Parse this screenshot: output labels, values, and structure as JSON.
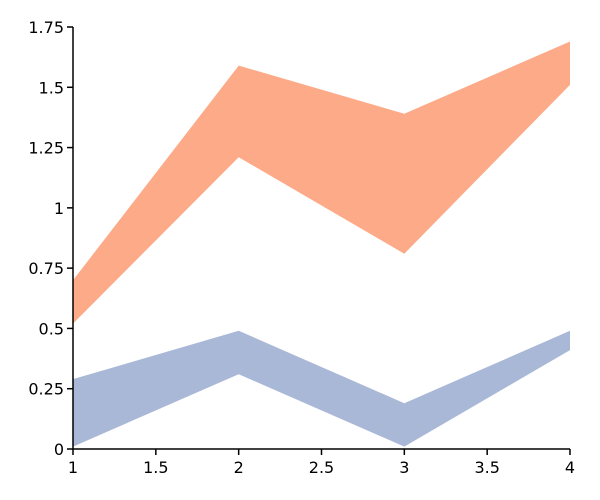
{
  "chart_data": {
    "type": "area",
    "title": "",
    "xlabel": "",
    "ylabel": "",
    "x": [
      1,
      2,
      3,
      4
    ],
    "xlim": [
      1,
      4
    ],
    "ylim": [
      0,
      1.75
    ],
    "x_ticks": [
      "1",
      "1.5",
      "2",
      "2.5",
      "3",
      "3.5",
      "4"
    ],
    "y_ticks": [
      "0",
      "0.25",
      "0.5",
      "0.75",
      "1",
      "1.25",
      "1.5",
      "1.75"
    ],
    "grid": false,
    "legend": "none",
    "series": [
      {
        "color": "#aab8d8",
        "lower": [
          0.01,
          0.31,
          0.01,
          0.41
        ],
        "upper": [
          0.29,
          0.49,
          0.19,
          0.49
        ]
      },
      {
        "color": "#fcaa88",
        "lower": [
          0.52,
          1.21,
          0.81,
          1.51
        ],
        "upper": [
          0.7,
          1.59,
          1.39,
          1.69
        ]
      }
    ]
  }
}
